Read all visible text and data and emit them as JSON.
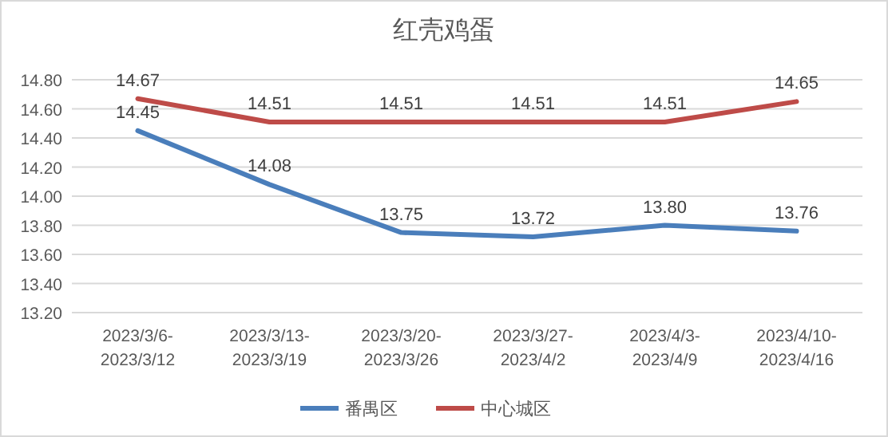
{
  "chart_data": {
    "type": "line",
    "title": "红壳鸡蛋",
    "categories": [
      "2023/3/6-2023/3/12",
      "2023/3/13-2023/3/19",
      "2023/3/20-2023/3/26",
      "2023/3/27-2023/4/2",
      "2023/4/3-2023/4/9",
      "2023/4/10-2023/4/16"
    ],
    "series": [
      {
        "name": "番禺区",
        "color": "#4a7ebb",
        "values": [
          14.45,
          14.08,
          13.75,
          13.72,
          13.8,
          13.76
        ],
        "value_labels": [
          "14.45",
          "14.08",
          "13.75",
          "13.72",
          "13.80",
          "13.76"
        ]
      },
      {
        "name": "中心城区",
        "color": "#be4b48",
        "values": [
          14.67,
          14.51,
          14.51,
          14.51,
          14.51,
          14.65
        ],
        "value_labels": [
          "14.67",
          "14.51",
          "14.51",
          "14.51",
          "14.51",
          "14.65"
        ]
      }
    ],
    "ylim": [
      13.2,
      14.8
    ],
    "yticks": [
      {
        "value": 13.2,
        "label": "13.20"
      },
      {
        "value": 13.4,
        "label": "13.40"
      },
      {
        "value": 13.6,
        "label": "13.60"
      },
      {
        "value": 13.8,
        "label": "13.80"
      },
      {
        "value": 14.0,
        "label": "14.00"
      },
      {
        "value": 14.2,
        "label": "14.20"
      },
      {
        "value": 14.4,
        "label": "14.40"
      },
      {
        "value": 14.6,
        "label": "14.60"
      },
      {
        "value": 14.8,
        "label": "14.80"
      }
    ],
    "grid": "y",
    "legend": "bottom",
    "marker": "none",
    "line_style": "solid"
  }
}
